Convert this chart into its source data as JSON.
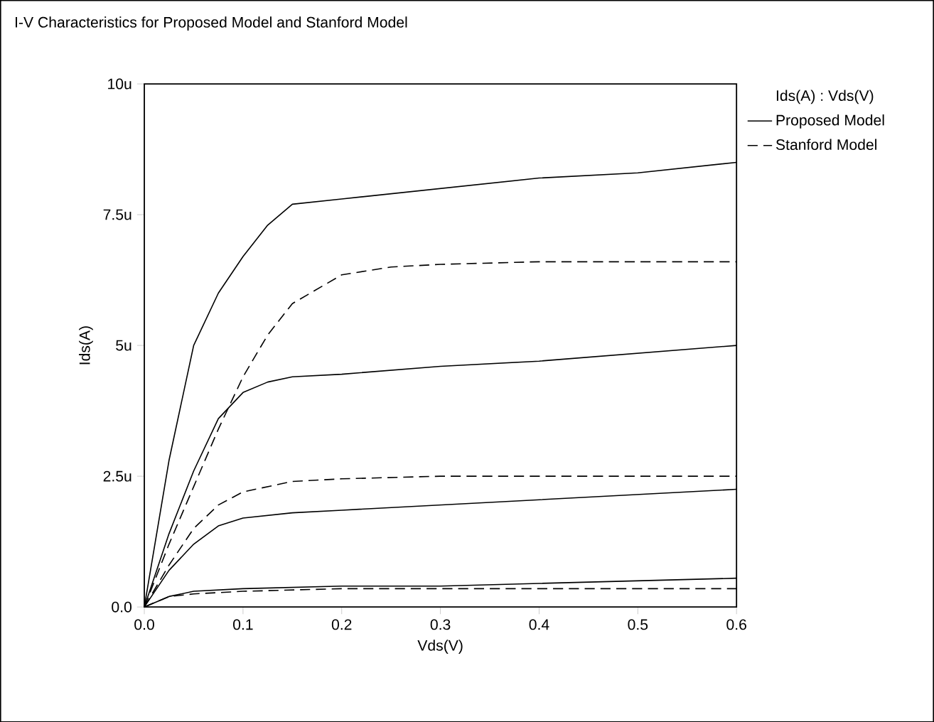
{
  "chart_data": {
    "type": "line",
    "title": "I-V Characteristics for Proposed Model and Stanford Model",
    "xlabel": "Vds(V)",
    "ylabel": "Ids(A)",
    "legend_title": "Ids(A) : Vds(V)",
    "legend": "right",
    "grid": false,
    "marker": "none",
    "xlim": [
      0,
      0.6
    ],
    "ylim": [
      0,
      10
    ],
    "xticks": [
      {
        "value": 0,
        "label": "0.0"
      },
      0.1,
      0.2,
      0.3,
      0.4,
      0.5,
      0.6
    ],
    "yticks": [
      {
        "value": 0,
        "label": "0.0"
      },
      {
        "value": 2.5,
        "label": "2.5u"
      },
      {
        "value": 5,
        "label": "5u"
      },
      {
        "value": 7.5,
        "label": "7.5u"
      },
      {
        "value": 10,
        "label": "10u"
      }
    ],
    "series": [
      {
        "name": "Proposed Model",
        "color": "#000000",
        "line_style": "solid",
        "x": [
          0,
          0.025,
          0.05,
          0.075,
          0.1,
          0.125,
          0.15,
          0.2,
          0.3,
          0.4,
          0.5,
          0.6
        ],
        "values": [
          0,
          2.8,
          5.0,
          6.0,
          6.7,
          7.3,
          7.7,
          7.8,
          8.0,
          8.2,
          8.3,
          8.5
        ]
      },
      {
        "color": "#000000",
        "line_style": "solid",
        "x": [
          0,
          0.025,
          0.05,
          0.075,
          0.1,
          0.125,
          0.15,
          0.2,
          0.3,
          0.4,
          0.5,
          0.6
        ],
        "values": [
          0,
          1.4,
          2.6,
          3.6,
          4.1,
          4.3,
          4.4,
          4.45,
          4.6,
          4.7,
          4.85,
          5.0
        ]
      },
      {
        "color": "#000000",
        "line_style": "solid",
        "x": [
          0,
          0.025,
          0.05,
          0.075,
          0.1,
          0.15,
          0.2,
          0.3,
          0.4,
          0.5,
          0.6
        ],
        "values": [
          0,
          0.7,
          1.2,
          1.55,
          1.7,
          1.8,
          1.85,
          1.95,
          2.05,
          2.15,
          2.25
        ]
      },
      {
        "color": "#000000",
        "line_style": "solid",
        "x": [
          0,
          0.025,
          0.05,
          0.1,
          0.2,
          0.3,
          0.4,
          0.5,
          0.6
        ],
        "values": [
          0,
          0.2,
          0.3,
          0.35,
          0.4,
          0.4,
          0.45,
          0.5,
          0.55
        ]
      },
      {
        "name": "Stanford Model",
        "color": "#000000",
        "line_style": "dashed",
        "x": [
          0,
          0.025,
          0.05,
          0.075,
          0.1,
          0.125,
          0.15,
          0.2,
          0.25,
          0.3,
          0.4,
          0.6
        ],
        "values": [
          0,
          1.2,
          2.3,
          3.4,
          4.4,
          5.2,
          5.8,
          6.35,
          6.5,
          6.55,
          6.6,
          6.6
        ]
      },
      {
        "color": "#000000",
        "line_style": "dashed",
        "x": [
          0,
          0.025,
          0.05,
          0.075,
          0.1,
          0.15,
          0.2,
          0.3,
          0.6
        ],
        "values": [
          0,
          0.8,
          1.5,
          1.95,
          2.2,
          2.4,
          2.45,
          2.5,
          2.5
        ]
      },
      {
        "color": "#000000",
        "line_style": "dashed",
        "x": [
          0,
          0.025,
          0.05,
          0.1,
          0.2,
          0.6
        ],
        "values": [
          0,
          0.2,
          0.25,
          0.3,
          0.35,
          0.35
        ]
      }
    ]
  }
}
